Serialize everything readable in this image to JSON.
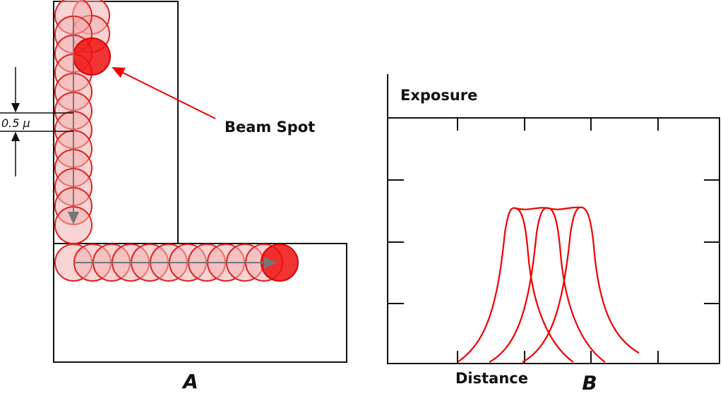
{
  "panel_a": {
    "beam_spot_label": "Beam Spot",
    "spot_size_label": "0.5 μ",
    "caption": "A"
  },
  "panel_b": {
    "y_axis_label": "Exposure",
    "x_axis_label": "Distance",
    "caption": "B"
  }
}
